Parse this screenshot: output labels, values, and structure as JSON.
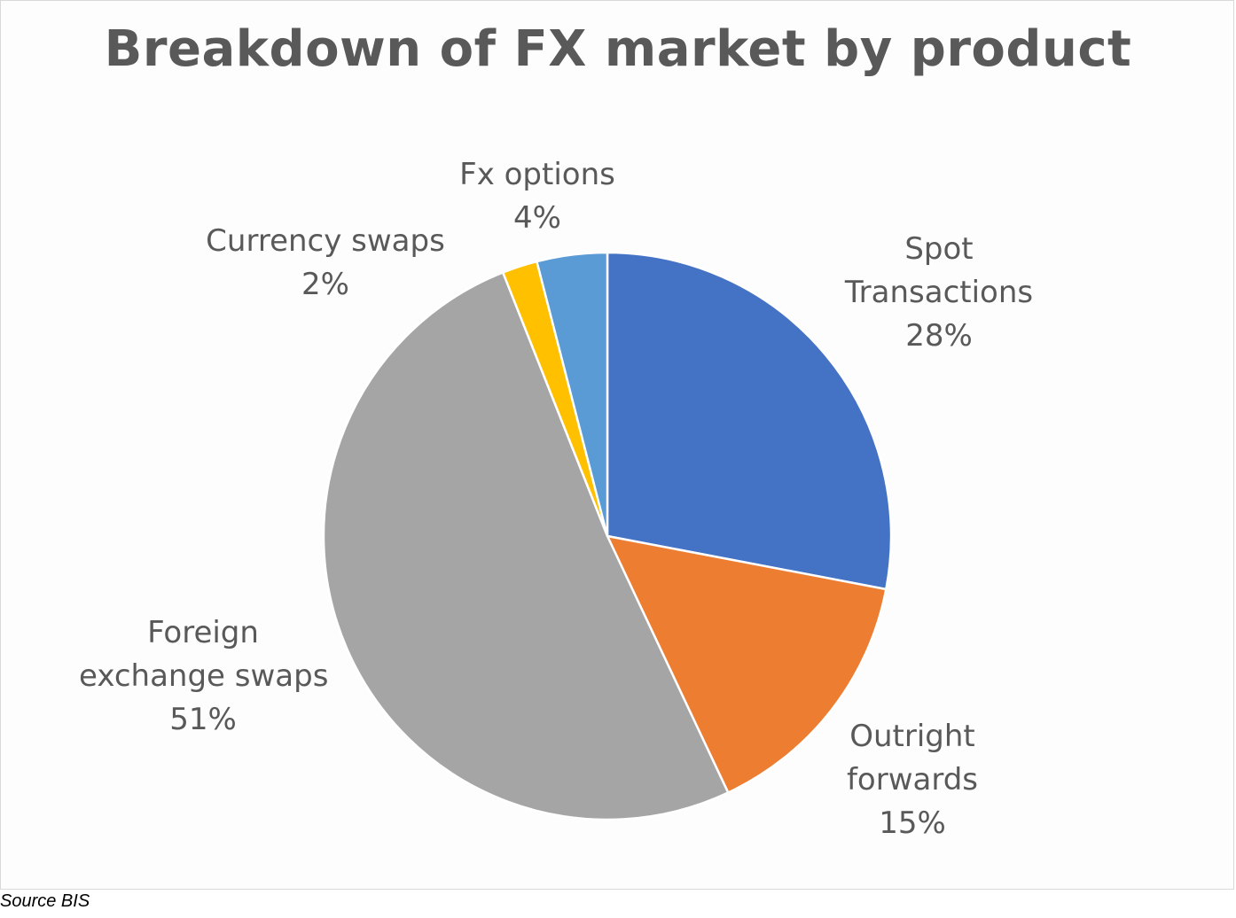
{
  "chart_data": {
    "type": "pie",
    "title": "Breakdown of FX market by product",
    "slices": [
      {
        "name": "Spot Transactions",
        "label_lines": [
          "Spot",
          "Transactions"
        ],
        "value": 28,
        "display": "28%",
        "color": "#4472c4"
      },
      {
        "name": "Outright forwards",
        "label_lines": [
          "Outright",
          "forwards"
        ],
        "value": 15,
        "display": "15%",
        "color": "#ed7d31"
      },
      {
        "name": "Foreign exchange swaps",
        "label_lines": [
          "Foreign",
          "exchange swaps"
        ],
        "value": 51,
        "display": "51%",
        "color": "#a5a5a5"
      },
      {
        "name": "Currency swaps",
        "label_lines": [
          "Currency swaps"
        ],
        "value": 2,
        "display": "2%",
        "color": "#ffc000"
      },
      {
        "name": "Fx options",
        "label_lines": [
          "Fx options"
        ],
        "value": 4,
        "display": "4%",
        "color": "#5b9bd5"
      }
    ],
    "start": "12 o'clock",
    "direction": "clockwise",
    "legend": "none"
  },
  "footer": {
    "source": "Source BIS"
  }
}
